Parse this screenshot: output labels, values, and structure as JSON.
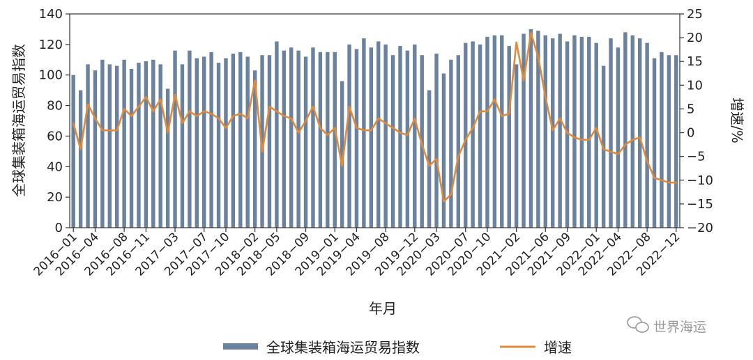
{
  "chart_data": {
    "type": "bar",
    "xlabel": "年月",
    "ylabel_left": "全球集装箱海运贸易指数",
    "ylabel_right": "增速/%",
    "ylim_left": [
      0,
      140
    ],
    "ylim_right": [
      -20,
      25
    ],
    "yticks_left": [
      "0",
      "20",
      "40",
      "60",
      "80",
      "100",
      "120",
      "140"
    ],
    "yticks_right": [
      "−20",
      "−15",
      "−10",
      "−5",
      "0",
      "5",
      "10",
      "15",
      "20",
      "25"
    ],
    "x_tick_labels": [
      "2016−01",
      "2016−04",
      "2016−08",
      "2016−11",
      "2017−03",
      "2017−07",
      "2017−10",
      "2018−02",
      "2018−05",
      "2018−09",
      "2019−01",
      "2019−04",
      "2019−08",
      "2019−12",
      "2020−03",
      "2020−07",
      "2020−10",
      "2021−02",
      "2021−06",
      "2021−09",
      "2022−01",
      "2022−04",
      "2022−08",
      "2022−12"
    ],
    "x_tick_index": [
      0,
      3,
      7,
      10,
      14,
      18,
      21,
      25,
      28,
      32,
      36,
      39,
      43,
      47,
      50,
      54,
      57,
      61,
      65,
      68,
      72,
      75,
      79,
      83
    ],
    "categories": [
      "2016-01",
      "2016-02",
      "2016-03",
      "2016-04",
      "2016-05",
      "2016-06",
      "2016-07",
      "2016-08",
      "2016-09",
      "2016-10",
      "2016-11",
      "2016-12",
      "2017-01",
      "2017-02",
      "2017-03",
      "2017-04",
      "2017-05",
      "2017-06",
      "2017-07",
      "2017-08",
      "2017-09",
      "2017-10",
      "2017-11",
      "2017-12",
      "2018-01",
      "2018-02",
      "2018-03",
      "2018-04",
      "2018-05",
      "2018-06",
      "2018-07",
      "2018-08",
      "2018-09",
      "2018-10",
      "2018-11",
      "2018-12",
      "2019-01",
      "2019-02",
      "2019-03",
      "2019-04",
      "2019-05",
      "2019-06",
      "2019-07",
      "2019-08",
      "2019-09",
      "2019-10",
      "2019-11",
      "2019-12",
      "2020-01",
      "2020-02",
      "2020-03",
      "2020-04",
      "2020-05",
      "2020-06",
      "2020-07",
      "2020-08",
      "2020-09",
      "2020-10",
      "2020-11",
      "2020-12",
      "2021-01",
      "2021-02",
      "2021-03",
      "2021-04",
      "2021-05",
      "2021-06",
      "2021-07",
      "2021-08",
      "2021-09",
      "2021-10",
      "2021-11",
      "2021-12",
      "2022-01",
      "2022-02",
      "2022-03",
      "2022-04",
      "2022-05",
      "2022-06",
      "2022-07",
      "2022-08",
      "2022-09",
      "2022-10",
      "2022-11",
      "2022-12"
    ],
    "series": [
      {
        "name": "全球集装箱海运贸易指数",
        "kind": "bar",
        "axis": "left",
        "color": "#6b829e",
        "values": [
          100,
          90,
          107,
          103,
          110,
          107,
          106,
          110,
          104,
          108,
          109,
          110,
          107,
          91,
          116,
          107,
          116,
          111,
          112,
          115,
          108,
          111,
          114,
          115,
          112,
          103,
          113,
          113,
          122,
          116,
          118,
          116,
          112,
          118,
          115,
          115,
          115,
          96,
          120,
          117,
          124,
          118,
          122,
          120,
          113,
          119,
          116,
          120,
          113,
          90,
          114,
          101,
          110,
          113,
          121,
          122,
          120,
          125,
          126,
          126,
          119,
          107,
          127,
          130,
          129,
          126,
          124,
          127,
          122,
          126,
          125,
          125,
          121,
          106,
          124,
          118,
          128,
          126,
          124,
          121,
          111,
          115,
          113,
          113
        ]
      },
      {
        "name": "增速",
        "kind": "line",
        "axis": "right",
        "color": "#e08a3c",
        "values": [
          2,
          -3.5,
          6,
          3,
          0.5,
          0.5,
          0.5,
          5,
          3.5,
          5.5,
          7.5,
          4.5,
          7,
          0,
          8,
          2,
          4.5,
          3.5,
          4.5,
          4,
          3,
          1,
          3.5,
          4,
          3,
          11,
          -4,
          5.5,
          4.5,
          3.5,
          3,
          0,
          2.5,
          5.5,
          1,
          -0.5,
          1,
          -7,
          5.5,
          1,
          0.5,
          0.5,
          3,
          2,
          1,
          0,
          -0.5,
          3,
          -2.5,
          -7,
          -5.5,
          -14.5,
          -13,
          -5,
          -1.5,
          1,
          4.5,
          4.5,
          7,
          3.5,
          4,
          19,
          11,
          21,
          16,
          7.5,
          0.5,
          3,
          0,
          -1,
          -1.5,
          -1.5,
          1,
          -3.5,
          -4,
          -4.5,
          -2.5,
          -1.5,
          -1,
          -6,
          -9.5,
          -10,
          -10.5,
          -10.5
        ]
      }
    ],
    "legend_position": "bottom",
    "grid": false
  },
  "watermark": "世界海运",
  "watermark_icon": "wechat-icon"
}
